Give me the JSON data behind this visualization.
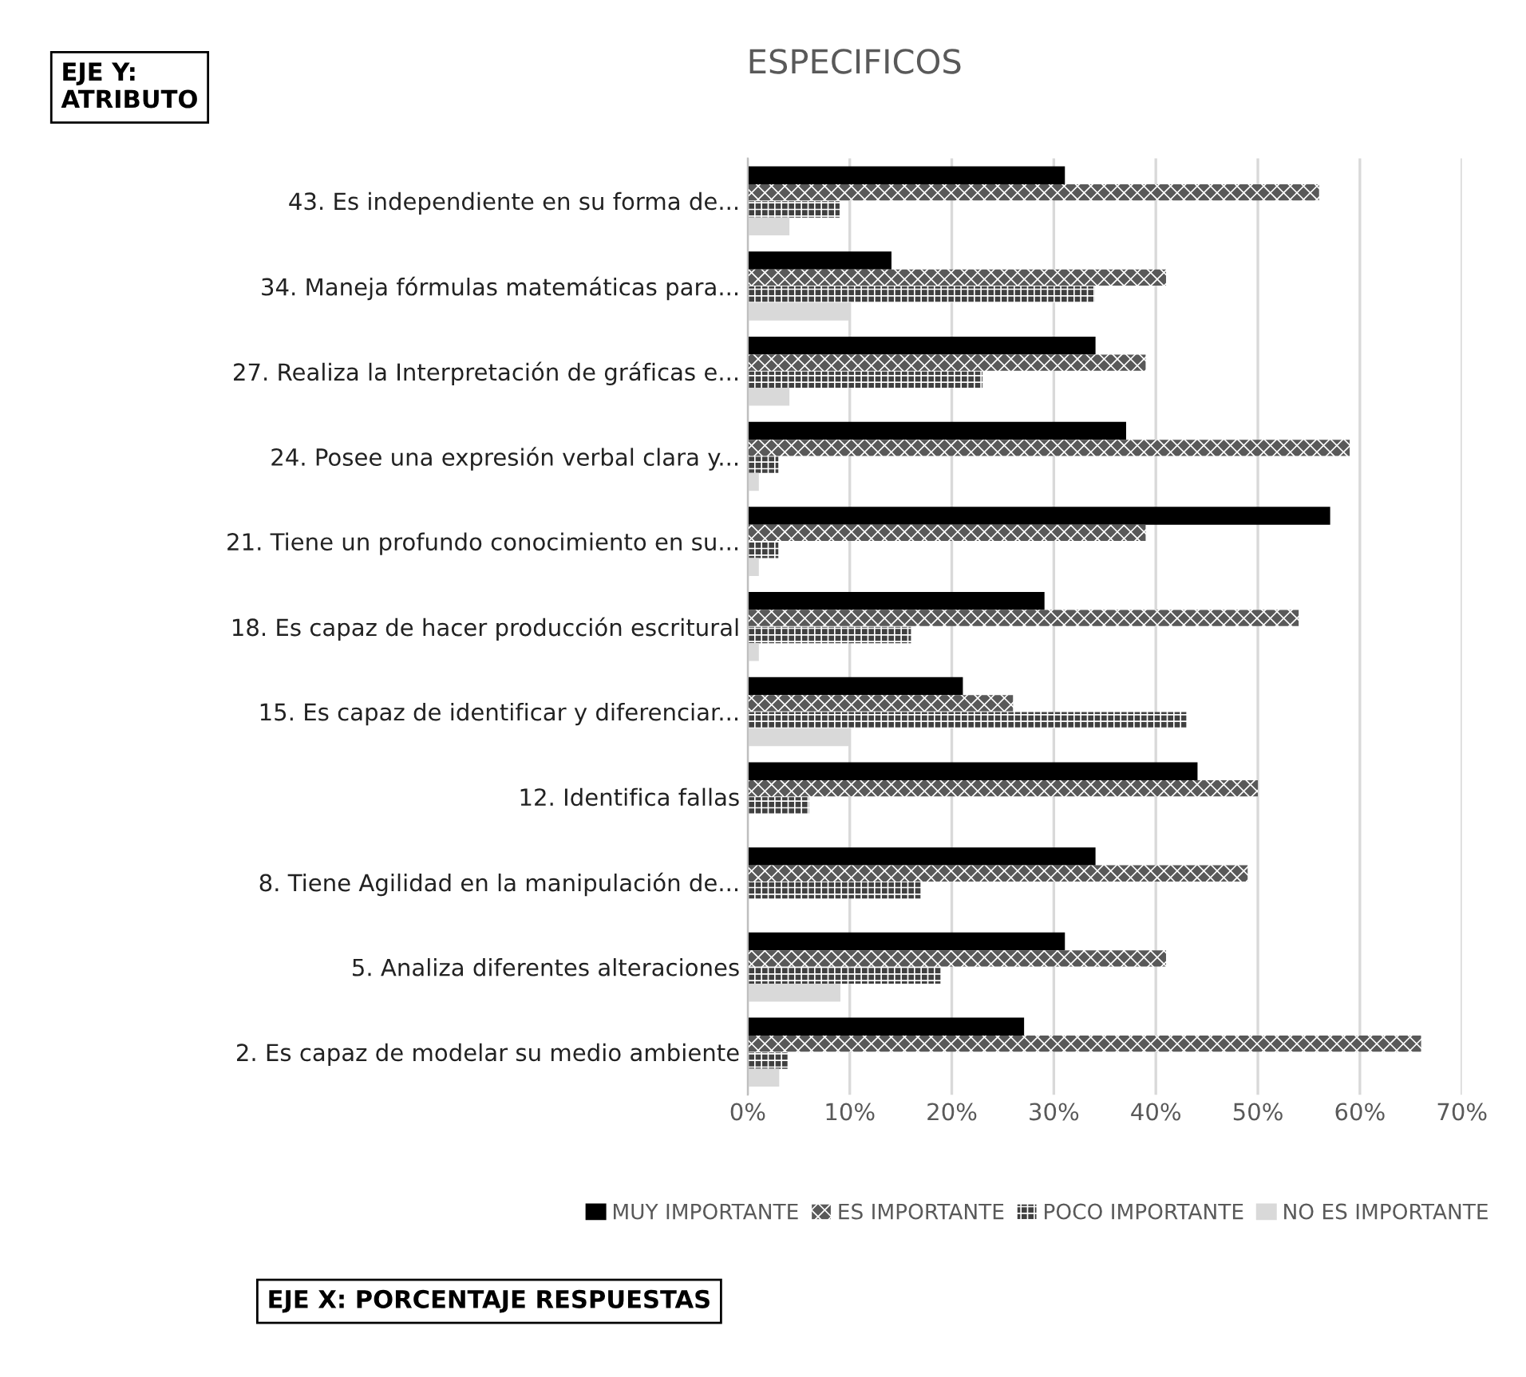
{
  "chart_data": {
    "type": "bar",
    "orientation": "horizontal",
    "title": "ESPECIFICOS",
    "categories": [
      "43. Es independiente en su forma de...",
      "34. Maneja fórmulas matemáticas para...",
      "27. Realiza la Interpretación de gráficas e...",
      "24. Posee una expresión verbal clara y...",
      "21. Tiene un profundo conocimiento en su...",
      "18. Es capaz de hacer producción escritural",
      "15. Es capaz de identificar y diferenciar...",
      "12. Identifica fallas",
      "8. Tiene Agilidad en la manipulación de...",
      "5. Analiza diferentes alteraciones",
      "2. Es capaz de modelar su medio ambiente"
    ],
    "series": [
      {
        "name": "MUY IMPORTANTE",
        "color": "#000000",
        "values": [
          31,
          14,
          34,
          37,
          57,
          29,
          21,
          44,
          34,
          31,
          27
        ]
      },
      {
        "name": "ES IMPORTANTE",
        "color": "#595959",
        "values": [
          56,
          41,
          39,
          59,
          39,
          54,
          26,
          50,
          49,
          41,
          66
        ]
      },
      {
        "name": "POCO IMPORTANTE",
        "color": "#404040",
        "values": [
          9,
          34,
          23,
          3,
          3,
          16,
          43,
          6,
          17,
          19,
          4
        ]
      },
      {
        "name": "NO ES IMPORTANTE",
        "color": "#d9d9d9",
        "values": [
          4,
          10,
          4,
          1,
          1,
          1,
          10,
          null,
          null,
          9,
          3
        ]
      }
    ],
    "xlim": [
      0,
      70
    ],
    "xticks": [
      {
        "value": 0,
        "label": "0%"
      },
      {
        "value": 10,
        "label": "10%"
      },
      {
        "value": 20,
        "label": "20%"
      },
      {
        "value": 30,
        "label": "30%"
      },
      {
        "value": 40,
        "label": "40%"
      },
      {
        "value": 50,
        "label": "50%"
      },
      {
        "value": 60,
        "label": "60%"
      },
      {
        "value": 70,
        "label": "70%"
      }
    ],
    "grid": "x",
    "legend": "bottom",
    "annotations": [
      "EJE Y:\nATRIBUTO",
      "EJE X: PORCENTAJE RESPUESTAS"
    ]
  }
}
